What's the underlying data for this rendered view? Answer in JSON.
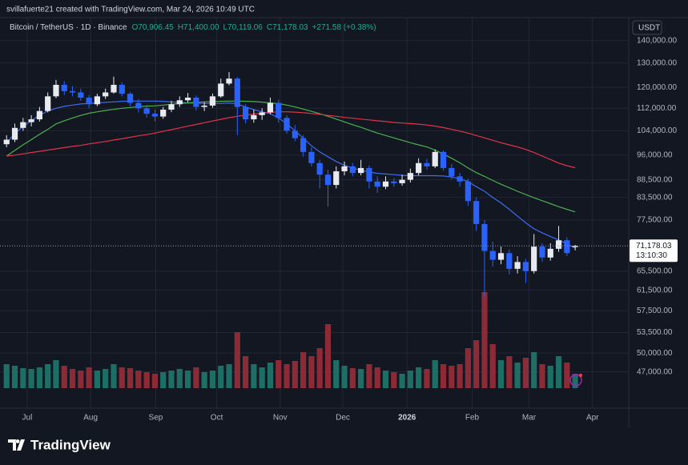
{
  "header": {
    "attribution": "svillafuerte21 created with TradingView.com, Mar 24, 2026 10:49 UTC"
  },
  "chart_data": {
    "type": "candlestick",
    "title": "Bitcoin / TetherUS · 1D · Binance",
    "legend_values": [
      "O70,906.45",
      "H71,400.00",
      "L70,119.06",
      "C71,178.03",
      "+271.58 (+0.38%)"
    ],
    "currency": "USDT",
    "up_color": "#e8eaf0",
    "down_color": "#2962ff",
    "open": [
      99500,
      101000,
      105000,
      107000,
      108000,
      111000,
      116500,
      121000,
      118500,
      118000,
      116000,
      113500,
      116500,
      118000,
      121000,
      117500,
      114000,
      112000,
      110000,
      109000,
      111500,
      113500,
      115000,
      116000,
      112500,
      113000,
      116500,
      121500,
      123500,
      112500,
      108000,
      109500,
      110500,
      114000,
      108500,
      104000,
      101500,
      97000,
      93500,
      90000,
      87000,
      91000,
      92500,
      90500,
      92000,
      88000,
      86500,
      88000,
      87500,
      88500,
      90500,
      93500,
      92500,
      97000,
      92000,
      89500,
      88000,
      82500,
      76500,
      70000,
      68000,
      69500,
      66000,
      67500,
      65500,
      71000,
      68500,
      70500,
      72500,
      70906.45
    ],
    "high": [
      102500,
      106500,
      108500,
      109500,
      112500,
      118000,
      123000,
      122500,
      120500,
      119500,
      117000,
      117500,
      119500,
      124300,
      122000,
      118200,
      115500,
      113200,
      111500,
      112500,
      114800,
      116500,
      117800,
      116800,
      114300,
      117600,
      123500,
      126200,
      124200,
      113500,
      111500,
      112000,
      116000,
      115200,
      109500,
      106000,
      102500,
      98500,
      94500,
      91500,
      92500,
      94000,
      93500,
      94500,
      92800,
      89500,
      89500,
      89000,
      90000,
      91800,
      95000,
      94800,
      97800,
      97500,
      93200,
      90500,
      88800,
      83500,
      77500,
      72200,
      71000,
      70300,
      68800,
      68200,
      74000,
      71800,
      71800,
      76000,
      73200,
      71400
    ],
    "low": [
      98500,
      100200,
      104000,
      105500,
      107200,
      110500,
      115800,
      117000,
      116500,
      114800,
      112000,
      112800,
      115500,
      117500,
      116500,
      112800,
      110500,
      108600,
      107300,
      108200,
      110600,
      112500,
      114200,
      111200,
      111000,
      112200,
      116000,
      120800,
      102500,
      106500,
      106800,
      107800,
      109800,
      106800,
      103000,
      100500,
      95500,
      92500,
      86000,
      81000,
      86000,
      89800,
      89500,
      89800,
      86000,
      84800,
      85800,
      86500,
      86800,
      87700,
      89800,
      91500,
      92000,
      91200,
      88600,
      86500,
      81200,
      74800,
      60200,
      66500,
      67000,
      64800,
      65000,
      63000,
      65000,
      67500,
      67800,
      69800,
      68800,
      70119.06
    ],
    "close": [
      101000,
      105000,
      107000,
      108000,
      111000,
      116500,
      121000,
      118500,
      118000,
      116000,
      113500,
      116500,
      118000,
      121000,
      117500,
      114000,
      112000,
      110000,
      109000,
      111500,
      113500,
      115000,
      116000,
      112500,
      113000,
      116500,
      121500,
      123500,
      112500,
      108000,
      109500,
      110500,
      114000,
      108500,
      104000,
      101500,
      97000,
      93500,
      90000,
      87000,
      91000,
      92500,
      90500,
      92000,
      88000,
      86500,
      88000,
      87500,
      88500,
      90500,
      93500,
      92500,
      97000,
      92000,
      89500,
      88000,
      82500,
      76500,
      70000,
      68000,
      69500,
      66000,
      67500,
      65500,
      71000,
      68500,
      70500,
      72500,
      69500,
      71178.03
    ],
    "volume": {
      "values": [
        30,
        28,
        25,
        24,
        26,
        30,
        35,
        28,
        24,
        22,
        26,
        22,
        24,
        30,
        26,
        25,
        22,
        20,
        18,
        20,
        22,
        24,
        22,
        26,
        20,
        22,
        28,
        30,
        70,
        40,
        30,
        26,
        32,
        35,
        30,
        34,
        45,
        40,
        50,
        80,
        35,
        28,
        25,
        24,
        30,
        26,
        22,
        20,
        18,
        22,
        26,
        24,
        35,
        30,
        28,
        30,
        50,
        60,
        120,
        55,
        35,
        40,
        32,
        38,
        45,
        30,
        28,
        40,
        32,
        18
      ],
      "ylim": [
        0,
        130
      ],
      "up_color": "#1d6f66",
      "down_color": "#8c2b36"
    },
    "moving_averages": [
      {
        "color": "#3d6cf0",
        "values": [
          100000,
          103000,
          105500,
          107500,
          109500,
          111000,
          112000,
          112700,
          113200,
          113600,
          113800,
          114000,
          114200,
          114400,
          114600,
          114700,
          114700,
          114700,
          114700,
          114600,
          114400,
          114200,
          114000,
          113900,
          113800,
          113800,
          113800,
          114000,
          113600,
          112500,
          111500,
          110700,
          110000,
          108500,
          106500,
          104000,
          101500,
          99000,
          97000,
          95500,
          94000,
          92800,
          92000,
          91300,
          90800,
          90400,
          90200,
          90000,
          89800,
          89700,
          89700,
          89700,
          89700,
          89600,
          89300,
          88800,
          88000,
          86500,
          85200,
          83500,
          82000,
          80300,
          78500,
          76800,
          75300,
          74300,
          73400,
          72600,
          71600,
          70700
        ]
      },
      {
        "color": "#4caf50",
        "values": [
          95700,
          97500,
          99300,
          101000,
          102800,
          104500,
          106400,
          107500,
          108500,
          109400,
          110200,
          110700,
          111200,
          111600,
          112000,
          112300,
          112600,
          112800,
          112900,
          113200,
          113500,
          113800,
          114000,
          114200,
          114400,
          114500,
          114600,
          114700,
          114700,
          114600,
          114500,
          114300,
          114000,
          113800,
          113200,
          112500,
          111700,
          110900,
          110000,
          109100,
          108100,
          107100,
          106100,
          105200,
          104200,
          103200,
          102400,
          101600,
          100800,
          100000,
          99300,
          98600,
          97600,
          96300,
          95000,
          93600,
          92000,
          90600,
          89500,
          88300,
          87200,
          86200,
          85200,
          84300,
          83400,
          82600,
          81800,
          81000,
          80300,
          79600
        ]
      },
      {
        "color": "#e0344a",
        "values": [
          95700,
          96000,
          96400,
          96800,
          97200,
          97600,
          98000,
          98400,
          98800,
          99100,
          99600,
          100000,
          100400,
          100900,
          101300,
          101800,
          102300,
          102700,
          103200,
          103800,
          104400,
          105000,
          105600,
          106200,
          106800,
          107400,
          108000,
          108600,
          109100,
          109500,
          109900,
          110200,
          110500,
          110700,
          110700,
          110600,
          110400,
          110100,
          109800,
          109400,
          109100,
          108700,
          108400,
          108100,
          107800,
          107500,
          107200,
          106900,
          106700,
          106500,
          106300,
          106000,
          105600,
          105100,
          104500,
          103900,
          103200,
          102400,
          101600,
          100800,
          100000,
          99300,
          98600,
          97800,
          96800,
          95700,
          94600,
          93500,
          92700,
          92100
        ]
      }
    ],
    "last_price_label": "71,178.03",
    "countdown": "13:10:30",
    "xlim": [
      -0.8,
      75.5
    ],
    "xticks": [
      {
        "value": 2.5,
        "label": "Jul"
      },
      {
        "value": 10.2,
        "label": "Aug"
      },
      {
        "value": 18.1,
        "label": "Sep"
      },
      {
        "value": 25.5,
        "label": "Oct"
      },
      {
        "value": 33.2,
        "label": "Nov"
      },
      {
        "value": 40.8,
        "label": "Dec"
      },
      {
        "value": 48.6,
        "label": "2026"
      },
      {
        "value": 56.5,
        "label": "Feb"
      },
      {
        "value": 63.4,
        "label": "Mar"
      },
      {
        "value": 71.1,
        "label": "Apr"
      }
    ],
    "ylim": [
      41700,
      151000
    ],
    "yticks": [
      {
        "value": 140000,
        "label": "140,000.00"
      },
      {
        "value": 130000,
        "label": "130,000.00"
      },
      {
        "value": 120000,
        "label": "120,000.00"
      },
      {
        "value": 112000,
        "label": "112,000.00"
      },
      {
        "value": 104000,
        "label": "104,000.00"
      },
      {
        "value": 96000,
        "label": "96,000.00"
      },
      {
        "value": 88500,
        "label": "88,500.00"
      },
      {
        "value": 83500,
        "label": "83,500.00"
      },
      {
        "value": 77500,
        "label": "77,500.00"
      },
      {
        "value": 65500,
        "label": "65,500.00"
      },
      {
        "value": 61500,
        "label": "61,500.00"
      },
      {
        "value": 57500,
        "label": "57,500.00"
      },
      {
        "value": 53500,
        "label": "53,500.00"
      },
      {
        "value": 50000,
        "label": "50,000.00"
      },
      {
        "value": 47000,
        "label": "47,000.00"
      }
    ],
    "log_scale": true,
    "grid": true
  },
  "footer": {
    "brand": "TradingView"
  }
}
